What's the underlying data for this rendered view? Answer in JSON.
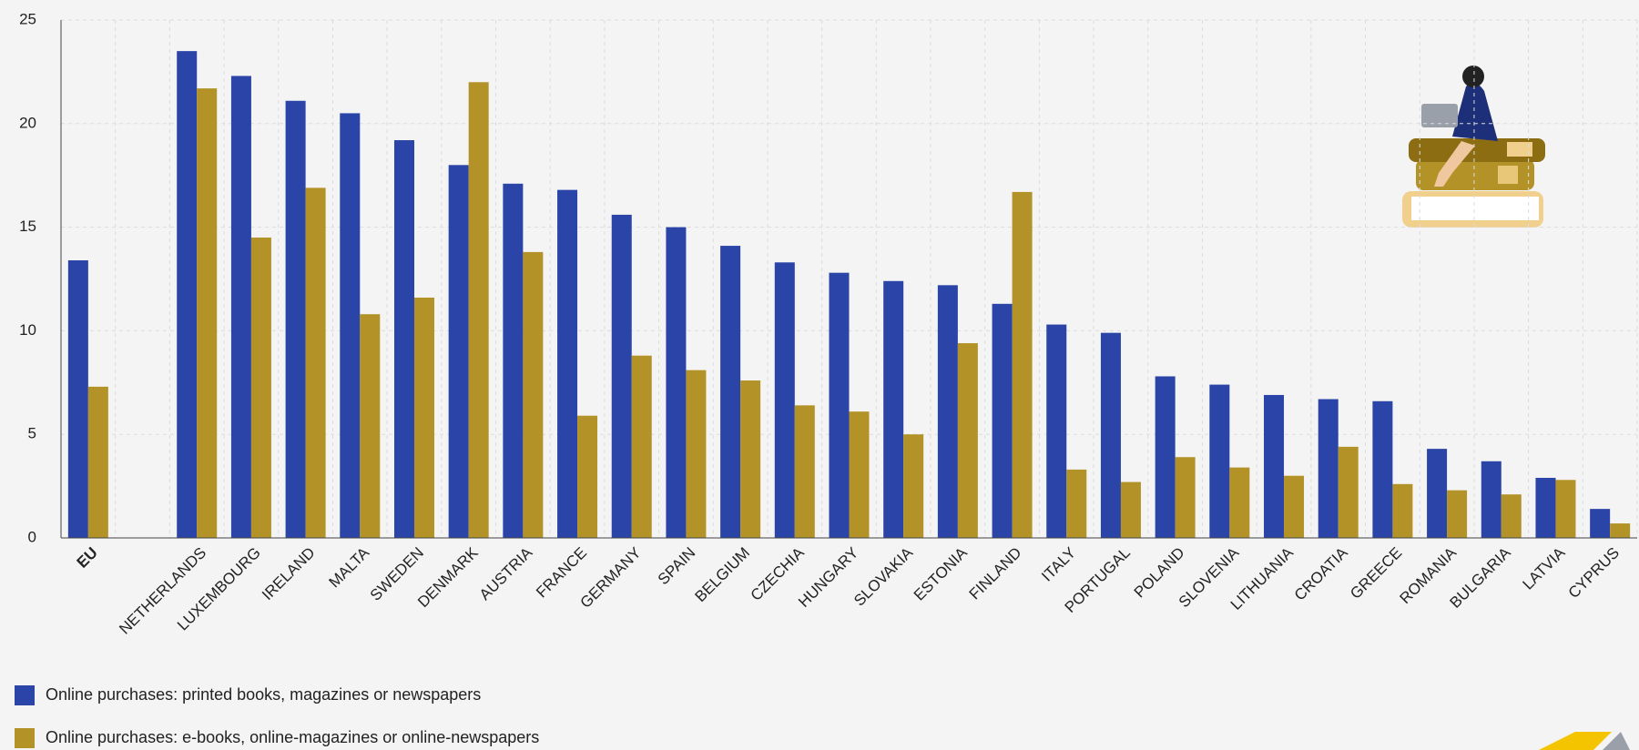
{
  "chart_data": {
    "type": "bar",
    "categories": [
      "EU",
      null,
      "NETHERLANDS",
      "LUXEMBOURG",
      "IRELAND",
      "MALTA",
      "SWEDEN",
      "DENMARK",
      "AUSTRIA",
      "FRANCE",
      "GERMANY",
      "SPAIN",
      "BELGIUM",
      "CZECHIA",
      "HUNGARY",
      "SLOVAKIA",
      "ESTONIA",
      "FINLAND",
      "ITALY",
      "PORTUGAL",
      "POLAND",
      "SLOVENIA",
      "LITHUANIA",
      "CROATIA",
      "GREECE",
      "ROMANIA",
      "BULGARIA",
      "LATVIA",
      "CYPRUS"
    ],
    "series": [
      {
        "name": "Online purchases: printed books, magazines or newspapers",
        "color": "#2a44a8",
        "values": [
          13.4,
          null,
          23.5,
          22.3,
          21.1,
          20.5,
          19.2,
          18.0,
          17.1,
          16.8,
          15.6,
          15.0,
          14.1,
          13.3,
          12.8,
          12.4,
          12.2,
          11.3,
          10.3,
          9.9,
          7.8,
          7.4,
          6.9,
          6.7,
          6.6,
          4.3,
          3.7,
          2.9,
          1.4
        ]
      },
      {
        "name": "Online purchases: e-books, online-magazines or online-newspapers",
        "color": "#b39328",
        "values": [
          7.3,
          null,
          21.7,
          14.5,
          16.9,
          10.8,
          11.6,
          22.0,
          13.8,
          5.9,
          8.8,
          8.1,
          7.6,
          6.4,
          6.1,
          5.0,
          9.4,
          16.7,
          3.3,
          2.7,
          3.9,
          3.4,
          3.0,
          4.4,
          2.6,
          2.3,
          2.1,
          2.8,
          0.7
        ]
      }
    ],
    "ylim": [
      0,
      25
    ],
    "yticks": [
      0,
      5,
      10,
      15,
      20,
      25
    ],
    "grid": true
  }
}
